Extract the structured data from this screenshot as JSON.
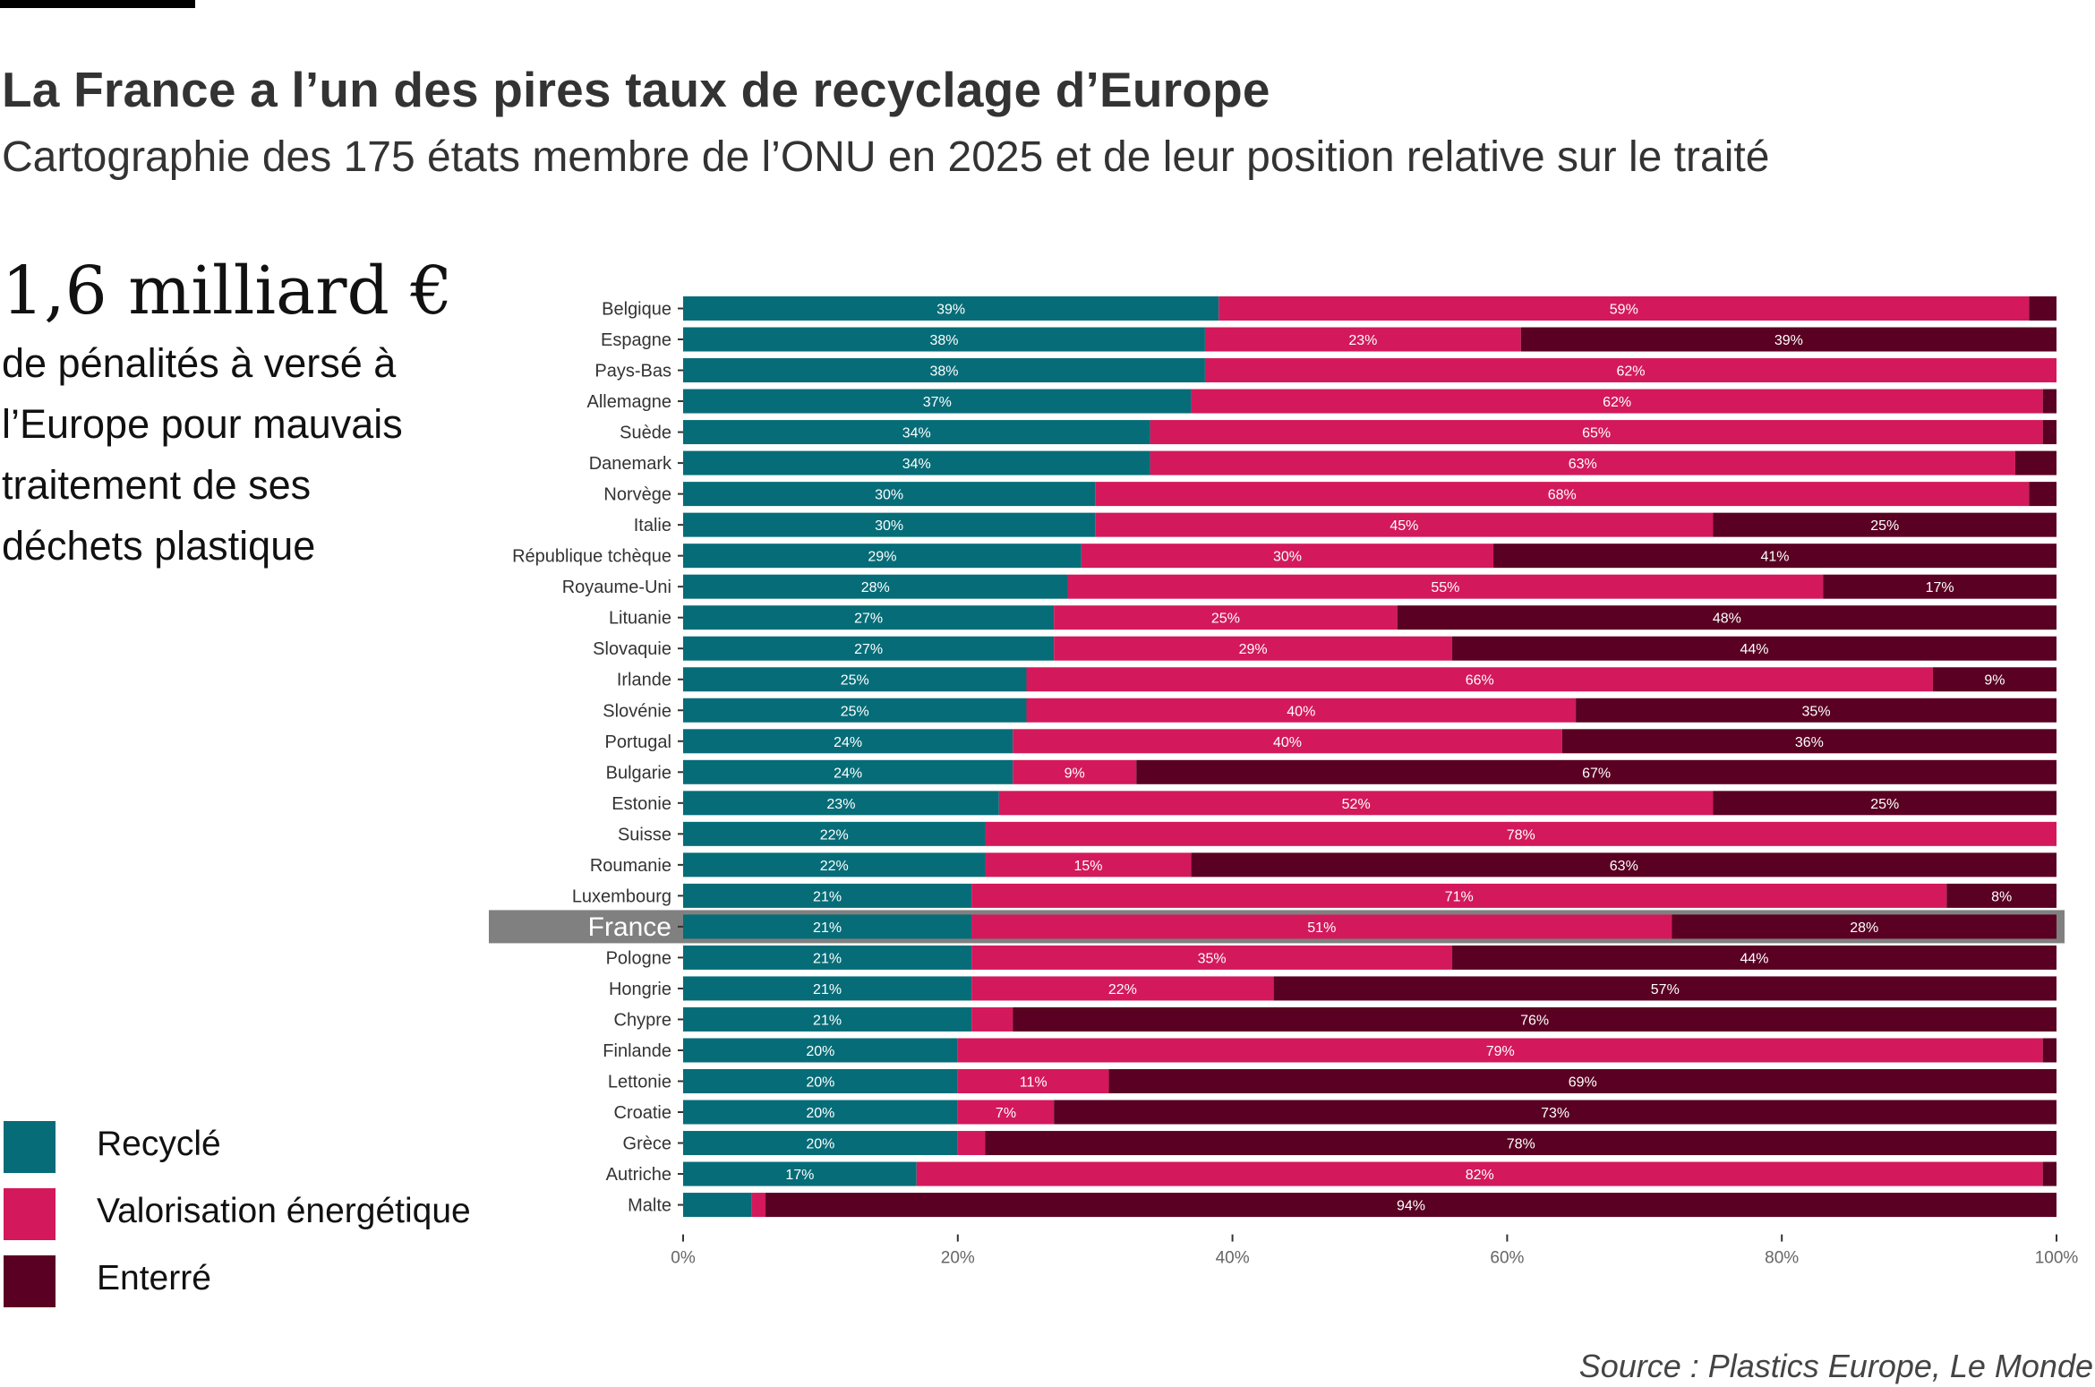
{
  "header": {
    "title": "La France a l’un des pires taux de recyclage d’Europe",
    "subtitle": "Cartographie des 175 états membre de l’ONU en 2025 et de leur position relative sur le traité"
  },
  "annotation": {
    "big_number": "1,6 milliard €",
    "lines": [
      "de pénalités à versé à",
      "l’Europe pour mauvais",
      "traitement de ses",
      "déchets plastique"
    ]
  },
  "legend": {
    "items": [
      {
        "label": "Recyclé",
        "color": "#066d78"
      },
      {
        "label": "Valorisation énergétique",
        "color": "#d3195b"
      },
      {
        "label": "Enterré",
        "color": "#5a0022"
      }
    ]
  },
  "source": "Source : Plastics Europe, Le Monde",
  "chart_data": {
    "type": "bar",
    "orientation": "horizontal",
    "stacked": true,
    "title": "La France a l’un des pires taux de recyclage d’Europe",
    "xlabel": "",
    "ylabel": "",
    "xlim": [
      0,
      100
    ],
    "x_ticks": [
      "0%",
      "20%",
      "40%",
      "60%",
      "80%",
      "100%"
    ],
    "x_tick_values": [
      0,
      20,
      40,
      60,
      80,
      100
    ],
    "grid": false,
    "legend_position": "left-bottom",
    "highlight": "France",
    "categories": [
      "Belgique",
      "Espagne",
      "Pays-Bas",
      "Allemagne",
      "Suède",
      "Danemark",
      "Norvège",
      "Italie",
      "République tchèque",
      "Royaume-Uni",
      "Lituanie",
      "Slovaquie",
      "Irlande",
      "Slovénie",
      "Portugal",
      "Bulgarie",
      "Estonie",
      "Suisse",
      "Roumanie",
      "Luxembourg",
      "France",
      "Pologne",
      "Hongrie",
      "Chypre",
      "Finlande",
      "Lettonie",
      "Croatie",
      "Grèce",
      "Autriche",
      "Malte"
    ],
    "series": [
      {
        "name": "Recyclé",
        "color": "#066d78",
        "values": [
          39,
          38,
          38,
          37,
          34,
          34,
          30,
          30,
          29,
          28,
          27,
          27,
          25,
          25,
          24,
          24,
          23,
          22,
          22,
          21,
          21,
          21,
          21,
          21,
          20,
          20,
          20,
          20,
          17,
          5
        ],
        "labels": [
          "39%",
          "38%",
          "38%",
          "37%",
          "34%",
          "34%",
          "30%",
          "30%",
          "29%",
          "28%",
          "27%",
          "27%",
          "25%",
          "25%",
          "24%",
          "24%",
          "23%",
          "22%",
          "22%",
          "21%",
          "21%",
          "21%",
          "21%",
          "21%",
          "20%",
          "20%",
          "20%",
          "20%",
          "17%",
          ""
        ]
      },
      {
        "name": "Valorisation énergétique",
        "color": "#d3195b",
        "values": [
          59,
          23,
          62,
          62,
          65,
          63,
          68,
          45,
          30,
          55,
          25,
          29,
          66,
          40,
          40,
          9,
          52,
          78,
          15,
          71,
          51,
          35,
          22,
          3,
          79,
          11,
          7,
          2,
          82,
          1
        ],
        "labels": [
          "59%",
          "23%",
          "62%",
          "62%",
          "65%",
          "63%",
          "68%",
          "45%",
          "30%",
          "55%",
          "25%",
          "29%",
          "66%",
          "40%",
          "40%",
          "9%",
          "52%",
          "78%",
          "15%",
          "71%",
          "51%",
          "35%",
          "22%",
          "",
          "79%",
          "11%",
          "7%",
          "",
          "82%",
          ""
        ]
      },
      {
        "name": "Enterré",
        "color": "#5a0022",
        "values": [
          2,
          39,
          0,
          1,
          1,
          3,
          2,
          25,
          41,
          17,
          48,
          44,
          9,
          35,
          36,
          67,
          25,
          0,
          63,
          8,
          28,
          44,
          57,
          76,
          1,
          69,
          73,
          78,
          1,
          94
        ],
        "labels": [
          "",
          "39%",
          "",
          "",
          "",
          "",
          "",
          "25%",
          "41%",
          "17%",
          "48%",
          "44%",
          "9%",
          "35%",
          "36%",
          "67%",
          "25%",
          "",
          "63%",
          "8%",
          "28%",
          "44%",
          "57%",
          "76%",
          "",
          "69%",
          "73%",
          "78%",
          "",
          "94%"
        ]
      }
    ]
  }
}
